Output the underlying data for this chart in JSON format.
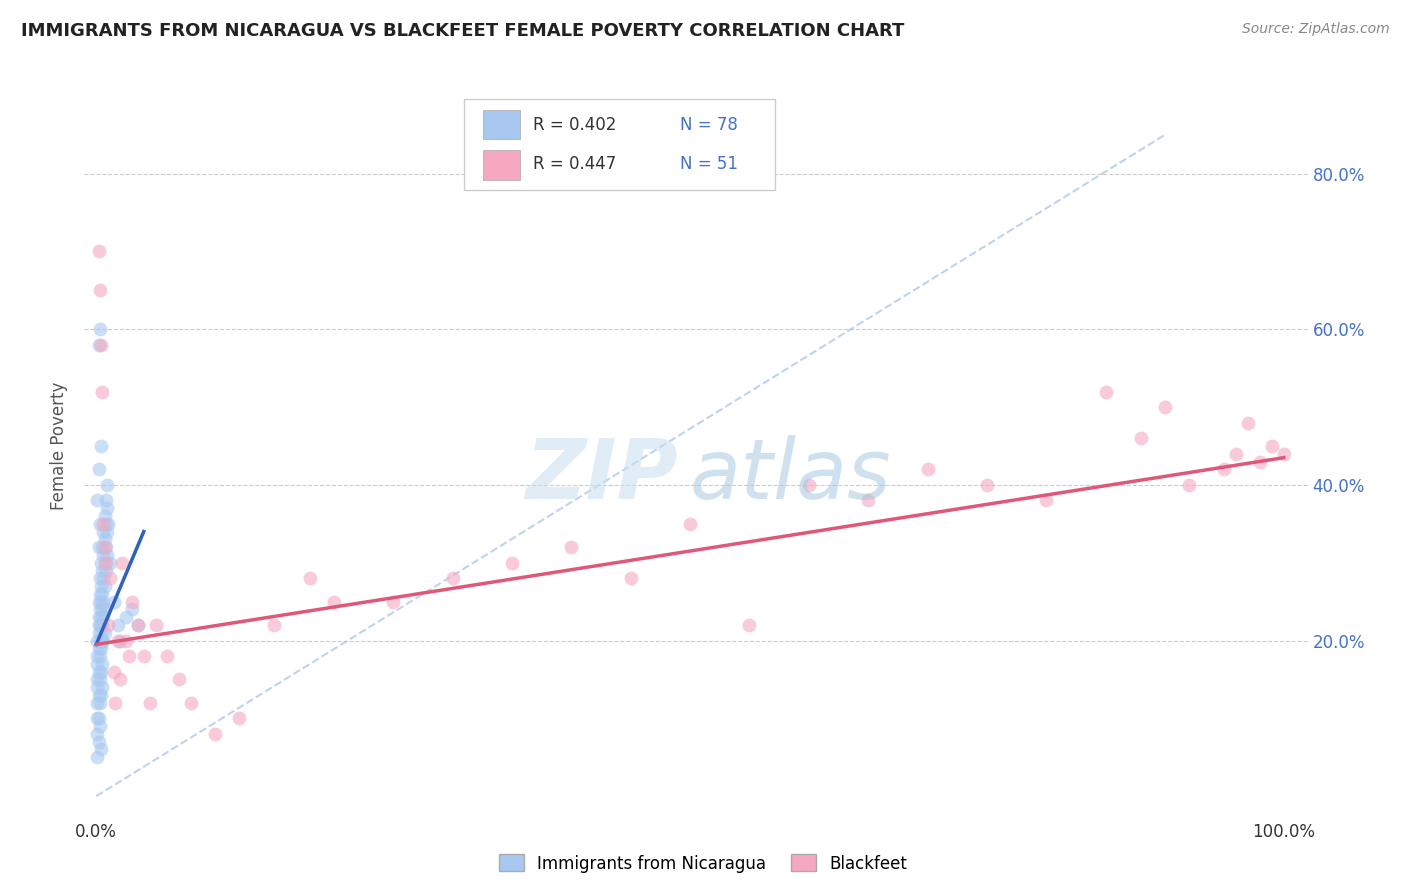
{
  "title": "IMMIGRANTS FROM NICARAGUA VS BLACKFEET FEMALE POVERTY CORRELATION CHART",
  "source": "Source: ZipAtlas.com",
  "ylabel": "Female Poverty",
  "ytick_labels": [
    "20.0%",
    "40.0%",
    "60.0%",
    "80.0%"
  ],
  "ytick_values": [
    0.2,
    0.4,
    0.6,
    0.8
  ],
  "xlim": [
    -0.01,
    1.02
  ],
  "ylim": [
    -0.02,
    0.92
  ],
  "blue_color": "#a8c8f0",
  "pink_color": "#f5a8c0",
  "blue_line_color": "#3060c0",
  "pink_line_color": "#e05878",
  "diag_color": "#b0c8e8",
  "watermark_zip": "#c8dff0",
  "watermark_atlas": "#a8c8e0",
  "blue_scatter": [
    [
      0.001,
      0.14
    ],
    [
      0.001,
      0.12
    ],
    [
      0.001,
      0.1
    ],
    [
      0.001,
      0.08
    ],
    [
      0.001,
      0.17
    ],
    [
      0.001,
      0.15
    ],
    [
      0.001,
      0.2
    ],
    [
      0.001,
      0.18
    ],
    [
      0.002,
      0.22
    ],
    [
      0.002,
      0.19
    ],
    [
      0.002,
      0.16
    ],
    [
      0.002,
      0.13
    ],
    [
      0.002,
      0.25
    ],
    [
      0.002,
      0.23
    ],
    [
      0.002,
      0.21
    ],
    [
      0.002,
      0.1
    ],
    [
      0.003,
      0.28
    ],
    [
      0.003,
      0.26
    ],
    [
      0.003,
      0.24
    ],
    [
      0.003,
      0.22
    ],
    [
      0.003,
      0.2
    ],
    [
      0.003,
      0.18
    ],
    [
      0.003,
      0.15
    ],
    [
      0.003,
      0.12
    ],
    [
      0.004,
      0.3
    ],
    [
      0.004,
      0.27
    ],
    [
      0.004,
      0.25
    ],
    [
      0.004,
      0.23
    ],
    [
      0.004,
      0.21
    ],
    [
      0.004,
      0.19
    ],
    [
      0.004,
      0.16
    ],
    [
      0.004,
      0.13
    ],
    [
      0.005,
      0.32
    ],
    [
      0.005,
      0.29
    ],
    [
      0.005,
      0.26
    ],
    [
      0.005,
      0.24
    ],
    [
      0.005,
      0.22
    ],
    [
      0.005,
      0.2
    ],
    [
      0.005,
      0.17
    ],
    [
      0.005,
      0.14
    ],
    [
      0.006,
      0.34
    ],
    [
      0.006,
      0.31
    ],
    [
      0.006,
      0.28
    ],
    [
      0.006,
      0.25
    ],
    [
      0.006,
      0.23
    ],
    [
      0.006,
      0.2
    ],
    [
      0.007,
      0.36
    ],
    [
      0.007,
      0.33
    ],
    [
      0.007,
      0.3
    ],
    [
      0.007,
      0.27
    ],
    [
      0.007,
      0.24
    ],
    [
      0.007,
      0.21
    ],
    [
      0.008,
      0.38
    ],
    [
      0.008,
      0.35
    ],
    [
      0.008,
      0.32
    ],
    [
      0.008,
      0.29
    ],
    [
      0.009,
      0.4
    ],
    [
      0.009,
      0.37
    ],
    [
      0.009,
      0.34
    ],
    [
      0.009,
      0.31
    ],
    [
      0.01,
      0.35
    ],
    [
      0.012,
      0.3
    ],
    [
      0.015,
      0.25
    ],
    [
      0.018,
      0.22
    ],
    [
      0.02,
      0.2
    ],
    [
      0.025,
      0.23
    ],
    [
      0.03,
      0.24
    ],
    [
      0.035,
      0.22
    ],
    [
      0.001,
      0.38
    ],
    [
      0.002,
      0.42
    ],
    [
      0.003,
      0.6
    ],
    [
      0.002,
      0.58
    ],
    [
      0.004,
      0.45
    ],
    [
      0.003,
      0.35
    ],
    [
      0.002,
      0.32
    ],
    [
      0.001,
      0.05
    ],
    [
      0.002,
      0.07
    ],
    [
      0.003,
      0.09
    ],
    [
      0.004,
      0.06
    ]
  ],
  "pink_scatter": [
    [
      0.002,
      0.7
    ],
    [
      0.003,
      0.65
    ],
    [
      0.004,
      0.58
    ],
    [
      0.005,
      0.52
    ],
    [
      0.006,
      0.35
    ],
    [
      0.007,
      0.32
    ],
    [
      0.008,
      0.3
    ],
    [
      0.01,
      0.22
    ],
    [
      0.012,
      0.28
    ],
    [
      0.015,
      0.16
    ],
    [
      0.016,
      0.12
    ],
    [
      0.018,
      0.2
    ],
    [
      0.02,
      0.15
    ],
    [
      0.022,
      0.3
    ],
    [
      0.025,
      0.2
    ],
    [
      0.028,
      0.18
    ],
    [
      0.03,
      0.25
    ],
    [
      0.035,
      0.22
    ],
    [
      0.04,
      0.18
    ],
    [
      0.045,
      0.12
    ],
    [
      0.05,
      0.22
    ],
    [
      0.06,
      0.18
    ],
    [
      0.07,
      0.15
    ],
    [
      0.08,
      0.12
    ],
    [
      0.1,
      0.08
    ],
    [
      0.12,
      0.1
    ],
    [
      0.15,
      0.22
    ],
    [
      0.18,
      0.28
    ],
    [
      0.2,
      0.25
    ],
    [
      0.25,
      0.25
    ],
    [
      0.3,
      0.28
    ],
    [
      0.35,
      0.3
    ],
    [
      0.4,
      0.32
    ],
    [
      0.45,
      0.28
    ],
    [
      0.5,
      0.35
    ],
    [
      0.55,
      0.22
    ],
    [
      0.6,
      0.4
    ],
    [
      0.65,
      0.38
    ],
    [
      0.7,
      0.42
    ],
    [
      0.75,
      0.4
    ],
    [
      0.8,
      0.38
    ],
    [
      0.85,
      0.52
    ],
    [
      0.88,
      0.46
    ],
    [
      0.9,
      0.5
    ],
    [
      0.92,
      0.4
    ],
    [
      0.95,
      0.42
    ],
    [
      0.96,
      0.44
    ],
    [
      0.97,
      0.48
    ],
    [
      0.98,
      0.43
    ],
    [
      0.99,
      0.45
    ],
    [
      1.0,
      0.44
    ]
  ],
  "blue_line": [
    [
      0.0,
      0.195
    ],
    [
      0.04,
      0.34
    ]
  ],
  "pink_line": [
    [
      0.0,
      0.195
    ],
    [
      1.0,
      0.435
    ]
  ],
  "diag_line": [
    [
      0.0,
      0.0
    ],
    [
      0.9,
      0.85
    ]
  ]
}
